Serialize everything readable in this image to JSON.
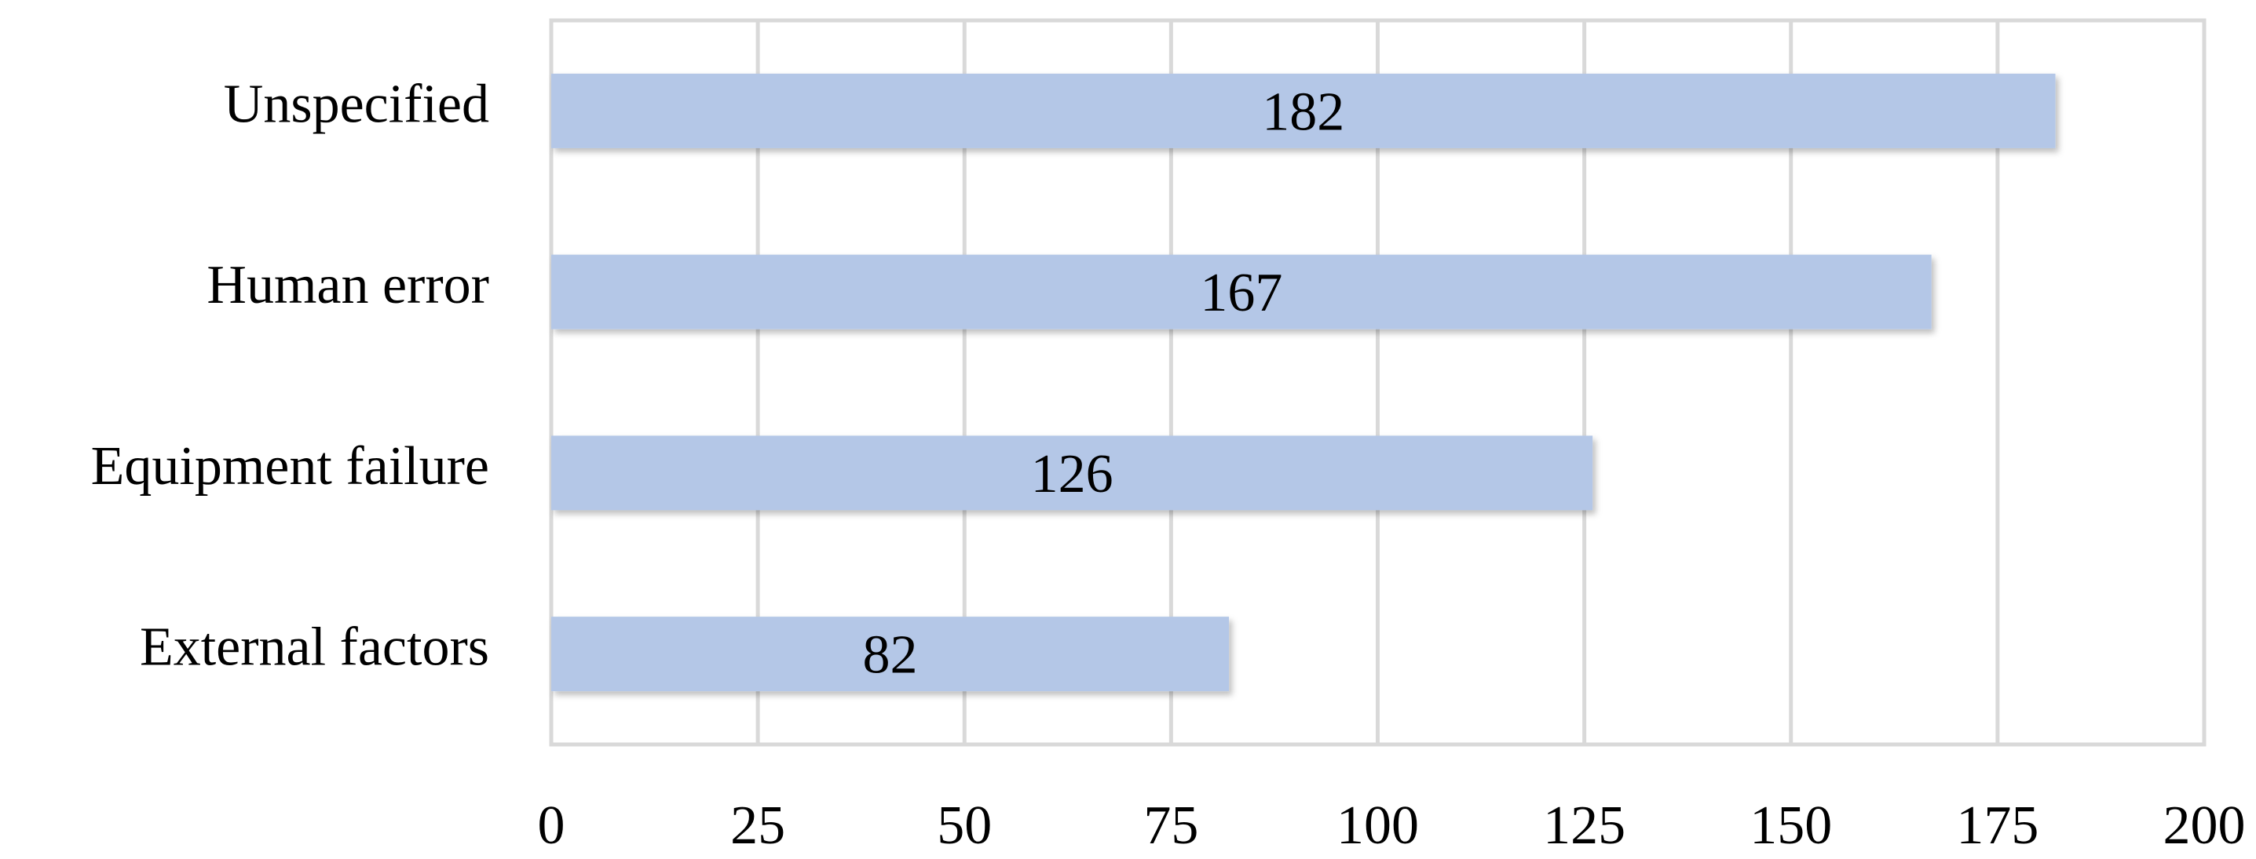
{
  "chart_data": {
    "type": "bar",
    "orientation": "horizontal",
    "categories": [
      "Unspecified",
      "Human error",
      "Equipment failure",
      "External factors"
    ],
    "values": [
      182,
      167,
      126,
      82
    ],
    "color": "#b4c7e7",
    "xlim": [
      0,
      200
    ],
    "xticks": [
      0,
      25,
      50,
      75,
      100,
      125,
      150,
      175,
      200
    ],
    "grid": true
  }
}
